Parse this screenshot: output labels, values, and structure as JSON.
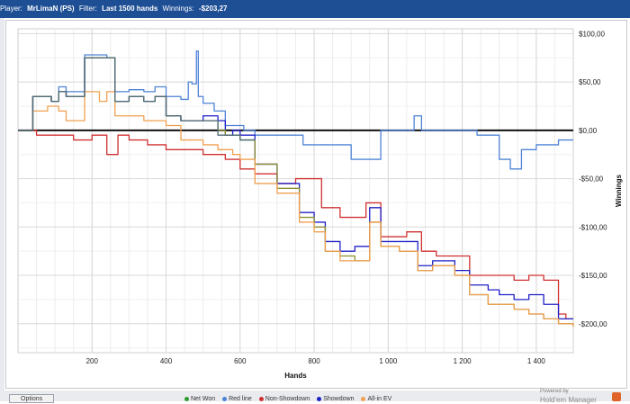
{
  "header": {
    "player_label": "Player:",
    "player_value": "MrLimaN (PS)",
    "filter_label": "Filter:",
    "filter_value": "Last 1500 hands",
    "winnings_label": "Winnings:",
    "winnings_value": "-$203,27"
  },
  "footer": {
    "button_label": "Options",
    "brand_top": "Powered by",
    "brand_name": "Hold'em Manager"
  },
  "colors": {
    "titlebar": "#1e4f95",
    "net_won": "#2e9c2e",
    "light_blue": "#4f83d6",
    "red": "#d03030",
    "dark_blue": "#2020c8",
    "olive": "#8c9130",
    "orange": "#f0a050",
    "slate": "#4d6a7a"
  },
  "chart_data": {
    "type": "line",
    "xlabel": "Hands",
    "ylabel": "Winnings",
    "xlim": [
      0,
      1500
    ],
    "ylim": [
      -230,
      105
    ],
    "x_ticks": [
      200,
      400,
      600,
      800,
      1000,
      1200,
      1400
    ],
    "x_tick_labels": [
      "200",
      "400",
      "600",
      "800",
      "1 000",
      "1 200",
      "1 400"
    ],
    "y_ticks": [
      100,
      50,
      0,
      -50,
      -100,
      -150,
      -200
    ],
    "y_tick_labels": [
      "$100,00",
      "$50,00",
      "$0,00",
      "-$50,00",
      "-$100,00",
      "-$150,00",
      "-$200,00"
    ],
    "grid": true,
    "legend_position": "bottom",
    "legend": [
      "Net Won",
      "Red line",
      "Non-Showdown",
      "Showdown",
      "All-in EV"
    ],
    "series": [
      {
        "color": "#4f83d6",
        "points": [
          [
            0,
            0
          ],
          [
            40,
            35
          ],
          [
            70,
            35
          ],
          [
            90,
            30
          ],
          [
            110,
            45
          ],
          [
            130,
            40
          ],
          [
            180,
            78
          ],
          [
            240,
            75
          ],
          [
            262,
            40
          ],
          [
            300,
            42
          ],
          [
            340,
            40
          ],
          [
            370,
            45
          ],
          [
            400,
            35
          ],
          [
            440,
            32
          ],
          [
            460,
            50
          ],
          [
            470,
            48
          ],
          [
            482,
            82
          ],
          [
            487,
            35
          ],
          [
            500,
            28
          ],
          [
            530,
            20
          ],
          [
            560,
            5
          ],
          [
            610,
            0
          ],
          [
            640,
            -5
          ],
          [
            700,
            -5
          ],
          [
            730,
            -5
          ],
          [
            770,
            -15
          ],
          [
            800,
            -15
          ],
          [
            840,
            -15
          ],
          [
            850,
            -15
          ],
          [
            900,
            -30
          ],
          [
            960,
            -30
          ],
          [
            980,
            0
          ],
          [
            1050,
            0
          ],
          [
            1070,
            15
          ],
          [
            1090,
            0
          ],
          [
            1200,
            0
          ],
          [
            1240,
            -5
          ],
          [
            1290,
            -5
          ],
          [
            1300,
            -30
          ],
          [
            1330,
            -40
          ],
          [
            1360,
            -20
          ],
          [
            1400,
            -15
          ],
          [
            1450,
            -15
          ],
          [
            1460,
            -10
          ],
          [
            1500,
            -10
          ]
        ]
      },
      {
        "color": "#d03030",
        "points": [
          [
            0,
            0
          ],
          [
            50,
            -5
          ],
          [
            100,
            -5
          ],
          [
            150,
            -10
          ],
          [
            200,
            -5
          ],
          [
            240,
            -25
          ],
          [
            270,
            -5
          ],
          [
            300,
            -10
          ],
          [
            350,
            -15
          ],
          [
            400,
            -20
          ],
          [
            450,
            -20
          ],
          [
            500,
            -25
          ],
          [
            560,
            -30
          ],
          [
            600,
            -40
          ],
          [
            640,
            -45
          ],
          [
            700,
            -55
          ],
          [
            750,
            -50
          ],
          [
            820,
            -80
          ],
          [
            870,
            -90
          ],
          [
            900,
            -90
          ],
          [
            940,
            -75
          ],
          [
            980,
            -110
          ],
          [
            1050,
            -105
          ],
          [
            1090,
            -125
          ],
          [
            1130,
            -130
          ],
          [
            1180,
            -130
          ],
          [
            1220,
            -150
          ],
          [
            1260,
            -150
          ],
          [
            1300,
            -150
          ],
          [
            1340,
            -155
          ],
          [
            1380,
            -150
          ],
          [
            1420,
            -155
          ],
          [
            1460,
            -190
          ],
          [
            1480,
            -195
          ],
          [
            1500,
            -195
          ]
        ]
      },
      {
        "color": "#2020c8",
        "points": [
          [
            0,
            0
          ],
          [
            40,
            35
          ],
          [
            70,
            35
          ],
          [
            90,
            30
          ],
          [
            110,
            40
          ],
          [
            130,
            35
          ],
          [
            180,
            75
          ],
          [
            240,
            75
          ],
          [
            262,
            30
          ],
          [
            300,
            35
          ],
          [
            340,
            30
          ],
          [
            370,
            35
          ],
          [
            400,
            15
          ],
          [
            440,
            10
          ],
          [
            500,
            15
          ],
          [
            540,
            10
          ],
          [
            560,
            -5
          ],
          [
            580,
            0
          ],
          [
            600,
            -5
          ],
          [
            640,
            -35
          ],
          [
            700,
            -55
          ],
          [
            760,
            -85
          ],
          [
            800,
            -95
          ],
          [
            830,
            -115
          ],
          [
            870,
            -125
          ],
          [
            910,
            -120
          ],
          [
            950,
            -80
          ],
          [
            980,
            -115
          ],
          [
            1030,
            -115
          ],
          [
            1080,
            -140
          ],
          [
            1120,
            -135
          ],
          [
            1180,
            -145
          ],
          [
            1220,
            -160
          ],
          [
            1270,
            -165
          ],
          [
            1300,
            -170
          ],
          [
            1340,
            -175
          ],
          [
            1380,
            -170
          ],
          [
            1420,
            -180
          ],
          [
            1460,
            -195
          ],
          [
            1500,
            -195
          ]
        ]
      },
      {
        "color": "#8c9130",
        "points": [
          [
            0,
            0
          ],
          [
            40,
            35
          ],
          [
            70,
            35
          ],
          [
            90,
            30
          ],
          [
            110,
            40
          ],
          [
            130,
            35
          ],
          [
            180,
            75
          ],
          [
            240,
            75
          ],
          [
            262,
            30
          ],
          [
            300,
            35
          ],
          [
            340,
            30
          ],
          [
            370,
            35
          ],
          [
            400,
            15
          ],
          [
            440,
            10
          ],
          [
            500,
            10
          ],
          [
            540,
            0
          ],
          [
            560,
            -5
          ],
          [
            600,
            -10
          ],
          [
            640,
            -35
          ],
          [
            700,
            -60
          ],
          [
            760,
            -90
          ],
          [
            800,
            -100
          ],
          [
            830,
            -125
          ],
          [
            870,
            -130
          ],
          [
            910,
            -135
          ],
          [
            950,
            -95
          ],
          [
            980,
            -120
          ],
          [
            1030,
            -125
          ],
          [
            1080,
            -145
          ],
          [
            1120,
            -140
          ],
          [
            1180,
            -150
          ],
          [
            1220,
            -170
          ],
          [
            1270,
            -180
          ],
          [
            1300,
            -180
          ],
          [
            1340,
            -185
          ],
          [
            1380,
            -190
          ],
          [
            1420,
            -195
          ],
          [
            1460,
            -200
          ],
          [
            1500,
            -203
          ]
        ]
      },
      {
        "color": "#f0a050",
        "points": [
          [
            0,
            0
          ],
          [
            40,
            20
          ],
          [
            80,
            25
          ],
          [
            110,
            20
          ],
          [
            130,
            10
          ],
          [
            180,
            40
          ],
          [
            220,
            30
          ],
          [
            240,
            40
          ],
          [
            262,
            15
          ],
          [
            300,
            15
          ],
          [
            340,
            10
          ],
          [
            370,
            10
          ],
          [
            400,
            5
          ],
          [
            440,
            -10
          ],
          [
            500,
            -15
          ],
          [
            540,
            -20
          ],
          [
            580,
            -25
          ],
          [
            600,
            -30
          ],
          [
            640,
            -55
          ],
          [
            700,
            -65
          ],
          [
            760,
            -95
          ],
          [
            800,
            -105
          ],
          [
            830,
            -125
          ],
          [
            870,
            -135
          ],
          [
            910,
            -135
          ],
          [
            950,
            -95
          ],
          [
            980,
            -120
          ],
          [
            1030,
            -125
          ],
          [
            1080,
            -145
          ],
          [
            1120,
            -140
          ],
          [
            1180,
            -150
          ],
          [
            1220,
            -170
          ],
          [
            1270,
            -180
          ],
          [
            1300,
            -180
          ],
          [
            1340,
            -185
          ],
          [
            1380,
            -190
          ],
          [
            1420,
            -195
          ],
          [
            1460,
            -200
          ],
          [
            1500,
            -203
          ]
        ]
      },
      {
        "color": "#4d6a7a",
        "points": [
          [
            0,
            0
          ],
          [
            40,
            35
          ],
          [
            70,
            35
          ],
          [
            90,
            30
          ],
          [
            110,
            40
          ],
          [
            130,
            35
          ],
          [
            180,
            75
          ],
          [
            240,
            75
          ],
          [
            262,
            30
          ],
          [
            300,
            35
          ],
          [
            340,
            30
          ],
          [
            370,
            35
          ],
          [
            400,
            15
          ],
          [
            440,
            10
          ],
          [
            500,
            10
          ],
          [
            540,
            -5
          ],
          [
            560,
            -5
          ],
          [
            600,
            -10
          ],
          [
            640,
            -10
          ]
        ]
      }
    ]
  }
}
